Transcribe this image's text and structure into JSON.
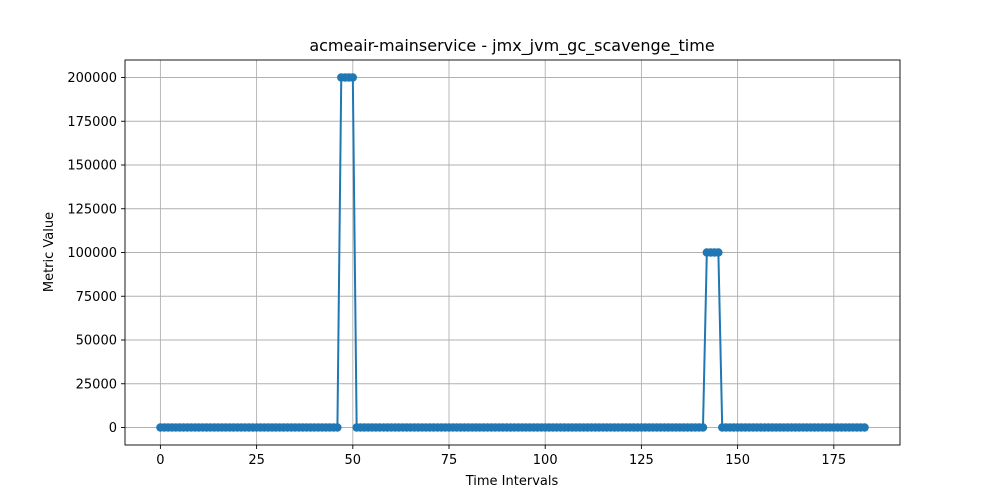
{
  "chart_data": {
    "type": "line",
    "title": "acmeair-mainservice - jmx_jvm_gc_scavenge_time",
    "xlabel": "Time Intervals",
    "ylabel": "Metric Value",
    "xlim": [
      -9.2,
      192.2
    ],
    "ylim": [
      -10000,
      210000
    ],
    "xticks": [
      0,
      25,
      50,
      75,
      100,
      125,
      150,
      175
    ],
    "yticks": [
      0,
      25000,
      50000,
      75000,
      100000,
      125000,
      150000,
      175000,
      200000
    ],
    "xtick_labels": [
      "0",
      "25",
      "50",
      "75",
      "100",
      "125",
      "150",
      "175"
    ],
    "ytick_labels": [
      "0",
      "25000",
      "50000",
      "75000",
      "100000",
      "125000",
      "150000",
      "175000",
      "200000"
    ],
    "grid": true,
    "color": "#1f77b4",
    "marker": "circle",
    "series": [
      {
        "x_start": 0,
        "x_end": 183,
        "baseline": 0,
        "spikes": [
          {
            "x": [
              47,
              48,
              49,
              50
            ],
            "y": 200000
          },
          {
            "x": [
              142,
              143,
              144,
              145
            ],
            "y": 100000
          }
        ]
      }
    ]
  }
}
